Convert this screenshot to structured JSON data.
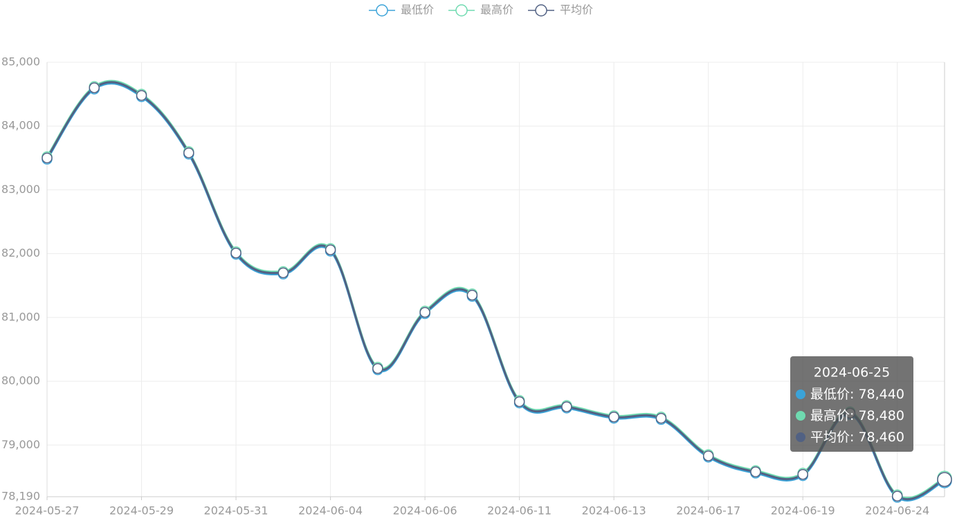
{
  "chart_data": {
    "type": "line",
    "categories": [
      "2024-05-27",
      null,
      "2024-05-29",
      null,
      "2024-05-31",
      null,
      "2024-06-04",
      null,
      "2024-06-06",
      null,
      "2024-06-11",
      null,
      "2024-06-13",
      null,
      "2024-06-17",
      null,
      "2024-06-19",
      null,
      "2024-06-24",
      "2024-06-25"
    ],
    "series": [
      {
        "name": "最低价",
        "color": "#3ba3d8",
        "values": [
          83480,
          84580,
          84460,
          83560,
          81990,
          81680,
          82040,
          80180,
          81060,
          81330,
          79660,
          79580,
          79420,
          79400,
          78810,
          78560,
          78520,
          79480,
          78180,
          78440
        ],
        "value_labels": [
          null,
          null,
          null,
          null,
          null,
          null,
          null,
          null,
          null,
          null,
          null,
          null,
          null,
          null,
          null,
          null,
          null,
          null,
          null,
          "78,440"
        ]
      },
      {
        "name": "最高价",
        "color": "#6fdab0",
        "values": [
          83520,
          84620,
          84500,
          83600,
          82030,
          81720,
          82080,
          80220,
          81100,
          81370,
          79700,
          79620,
          79460,
          79440,
          78850,
          78600,
          78560,
          79520,
          78220,
          78480
        ],
        "value_labels": [
          null,
          null,
          null,
          null,
          null,
          null,
          null,
          null,
          null,
          null,
          null,
          null,
          null,
          null,
          null,
          null,
          null,
          null,
          null,
          "78,480"
        ]
      },
      {
        "name": "平均价",
        "color": "#516183",
        "values": [
          83500,
          84600,
          84480,
          83580,
          82010,
          81700,
          82060,
          80200,
          81080,
          81350,
          79680,
          79600,
          79440,
          79420,
          78830,
          78580,
          78540,
          79500,
          78200,
          78460
        ],
        "value_labels": [
          null,
          null,
          null,
          null,
          null,
          null,
          null,
          null,
          null,
          null,
          null,
          null,
          null,
          null,
          null,
          null,
          null,
          null,
          null,
          "78,460"
        ]
      }
    ],
    "ylim": [
      78190,
      85000
    ],
    "yticks": [
      {
        "value": 78190,
        "label": "78,190"
      },
      {
        "value": 79000,
        "label": "79,000"
      },
      {
        "value": 80000,
        "label": "80,000"
      },
      {
        "value": 81000,
        "label": "81,000"
      },
      {
        "value": 82000,
        "label": "82,000"
      },
      {
        "value": 83000,
        "label": "83,000"
      },
      {
        "value": 84000,
        "label": "84,000"
      },
      {
        "value": 85000,
        "label": "85,000"
      }
    ],
    "grid": true,
    "legend": "top"
  }
}
